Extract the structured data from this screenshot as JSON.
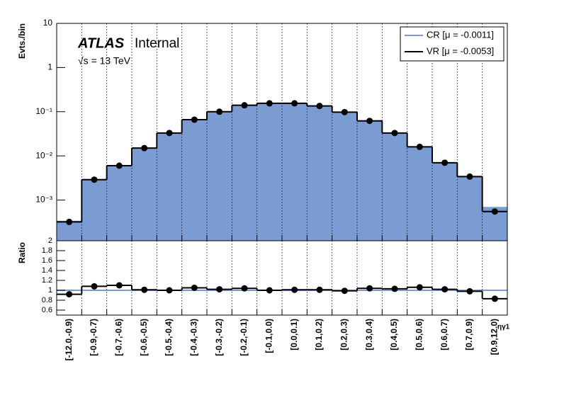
{
  "chart_data": [
    {
      "type": "bar",
      "ylabel": "Evts./bin",
      "log_y": true,
      "ylim": [
        0.00012,
        10
      ],
      "yticks": [
        {
          "value": 0.001,
          "label": "10⁻³"
        },
        {
          "value": 0.01,
          "label": "10⁻²"
        },
        {
          "value": 0.1,
          "label": "10⁻¹"
        },
        1,
        10
      ],
      "grid": "x",
      "legend": "top-right",
      "annotations": [
        "ATLAS",
        "Internal",
        "√s = 13 TeV"
      ],
      "series": [
        {
          "name": "CR [μ = -0.0011]",
          "color": "#7b9bd3",
          "draw": "fill",
          "values": [
            0.00034,
            0.003,
            0.0062,
            0.015,
            0.034,
            0.066,
            0.1,
            0.14,
            0.155,
            0.155,
            0.135,
            0.1,
            0.064,
            0.034,
            0.016,
            0.0072,
            0.0035,
            0.0007
          ]
        },
        {
          "name": "VR [μ = -0.0053]",
          "color": "#000000",
          "draw": "step-markers",
          "values": [
            0.00032,
            0.0029,
            0.006,
            0.015,
            0.033,
            0.066,
            0.1,
            0.14,
            0.155,
            0.155,
            0.135,
            0.098,
            0.062,
            0.033,
            0.016,
            0.007,
            0.0034,
            0.00055
          ]
        }
      ]
    },
    {
      "type": "step",
      "ylabel": "Ratio",
      "xlabel": "ηγ1",
      "categories": [
        "[-12.0,-0.9)",
        "[-0.9,-0.7)",
        "[-0.7,-0.6)",
        "[-0.6,-0.5)",
        "[-0.5,-0.4)",
        "[-0.4,-0.3)",
        "[-0.3,-0.2)",
        "[-0.2,-0.1)",
        "[-0.1,0.0)",
        "[0.0,0.1)",
        "[0.1,0.2)",
        "[0.2,0.3)",
        "[0.3,0.4)",
        "[0.4,0.5)",
        "[0.5,0.6)",
        "[0.6,0.7)",
        "[0.7,0.9)",
        "[0.9,12.0)"
      ],
      "ylim": [
        0.5,
        2
      ],
      "yticks": [
        0.6,
        0.8,
        1,
        1.2,
        1.4,
        1.6,
        1.8,
        2
      ],
      "grid": "x",
      "series": [
        {
          "color": "#7b9bd3",
          "draw": "step",
          "values": [
            1,
            1,
            1,
            1,
            1,
            1,
            1,
            1,
            1,
            1,
            1,
            1,
            1,
            1,
            1,
            1,
            1,
            1
          ]
        },
        {
          "color": "#000000",
          "draw": "step-markers",
          "values": [
            0.92,
            1.08,
            1.1,
            1.01,
            1.0,
            1.05,
            1.02,
            1.04,
            1.0,
            1.01,
            1.01,
            0.99,
            1.04,
            1.03,
            1.06,
            1.02,
            0.98,
            0.83
          ]
        }
      ]
    }
  ]
}
